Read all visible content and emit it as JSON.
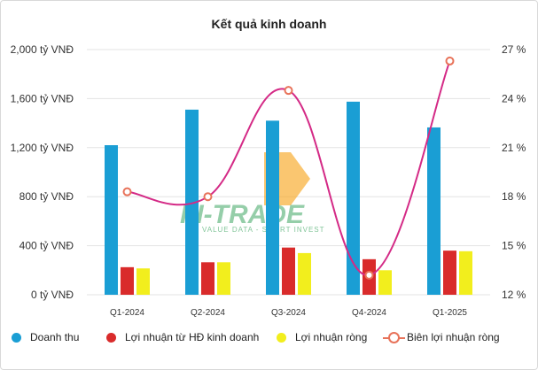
{
  "chart_data": {
    "type": "bar",
    "title": "Kết quả kinh doanh",
    "categories": [
      "Q1-2024",
      "Q2-2024",
      "Q3-2024",
      "Q4-2024",
      "Q1-2025"
    ],
    "series": [
      {
        "name": "Doanh thu",
        "kind": "bar",
        "color": "#1a9ed4",
        "values": [
          1220,
          1510,
          1420,
          1575,
          1365
        ]
      },
      {
        "name": "Lợi nhuận từ HĐ kinh doanh",
        "kind": "bar",
        "color": "#d92b2b",
        "values": [
          225,
          265,
          385,
          290,
          360
        ]
      },
      {
        "name": "Lợi nhuận ròng",
        "kind": "bar",
        "color": "#f2ee1d",
        "values": [
          215,
          265,
          340,
          200,
          355
        ]
      },
      {
        "name": "Biên lợi nhuận ròng",
        "kind": "line",
        "axis": "right",
        "color": "#d42a86",
        "marker_color": "#e8735a",
        "values": [
          18.3,
          18.0,
          24.5,
          13.2,
          26.3
        ]
      }
    ],
    "y_left": {
      "min": 0,
      "max": 2000,
      "ticks": [
        0,
        400,
        800,
        1200,
        1600,
        2000
      ],
      "tick_labels": [
        "0 tỷ VNĐ",
        "400 tỷ VNĐ",
        "800 tỷ VNĐ",
        "1,200 tỷ VNĐ",
        "1,600 tỷ VNĐ",
        "2,000 tỷ VNĐ"
      ]
    },
    "y_right": {
      "min": 12,
      "max": 27,
      "ticks": [
        12,
        15,
        18,
        21,
        24,
        27
      ],
      "tick_labels": [
        "12 %",
        "15 %",
        "18 %",
        "21 %",
        "24 %",
        "27 %"
      ]
    },
    "grid": true,
    "legend_position": "bottom"
  },
  "watermark": {
    "brand": "FI-TRADE",
    "tagline": "VALUE DATA - SMART INVEST"
  }
}
